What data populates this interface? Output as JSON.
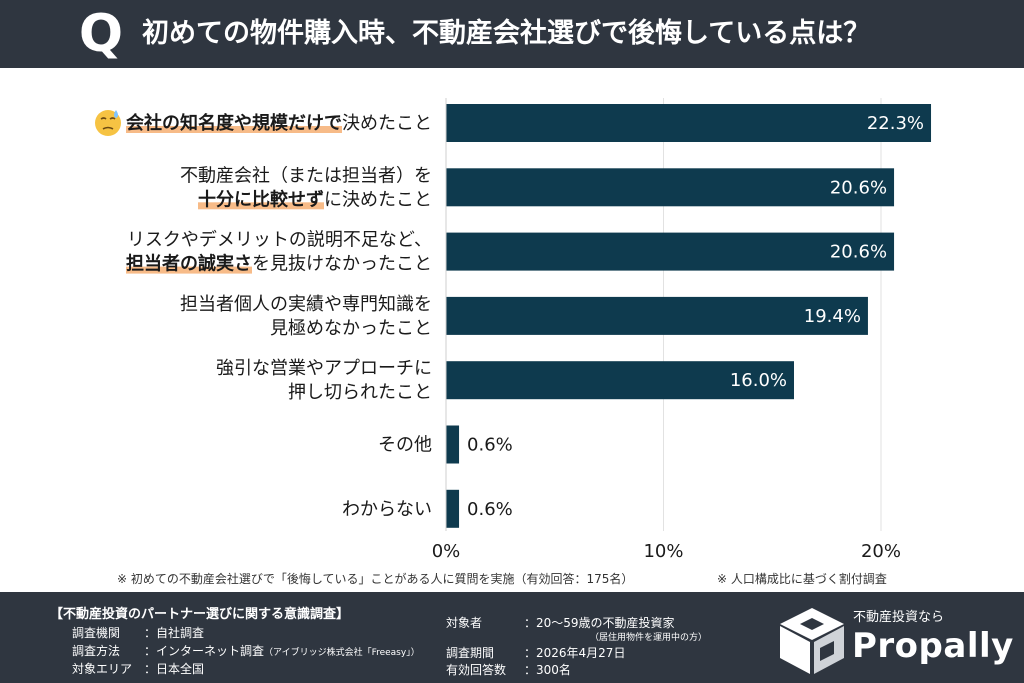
{
  "header": {
    "badge": "Q",
    "title": "初めての物件購入時、不動産会社選びで後悔している点は？"
  },
  "chart_data": {
    "type": "bar",
    "orientation": "horizontal",
    "title": "初めての物件購入時、不動産会社選びで後悔している点は？",
    "unit": "%",
    "categories": [
      {
        "lines": [
          [
            {
              "t": "会社の知名度や規模だけで",
              "hl": true
            },
            {
              "t": "決めたこと",
              "hl": false
            }
          ]
        ],
        "emoji": true
      },
      {
        "lines": [
          [
            {
              "t": "不動産会社（または担当者）を",
              "hl": false
            }
          ],
          [
            {
              "t": "十分に比較せず",
              "hl": true
            },
            {
              "t": "に決めたこと",
              "hl": false
            }
          ]
        ]
      },
      {
        "lines": [
          [
            {
              "t": "リスクやデメリットの説明不足など、",
              "hl": false
            }
          ],
          [
            {
              "t": "担当者の誠実さ",
              "hl": true
            },
            {
              "t": "を見抜けなかったこと",
              "hl": false
            }
          ]
        ]
      },
      {
        "lines": [
          [
            {
              "t": "担当者個人の実績や専門知識を",
              "hl": false
            }
          ],
          [
            {
              "t": "見極めなかったこと",
              "hl": false
            }
          ]
        ]
      },
      {
        "lines": [
          [
            {
              "t": "強引な営業やアプローチに",
              "hl": false
            }
          ],
          [
            {
              "t": "押し切られたこと",
              "hl": false
            }
          ]
        ]
      },
      {
        "lines": [
          [
            {
              "t": "その他",
              "hl": false
            }
          ]
        ]
      },
      {
        "lines": [
          [
            {
              "t": "わからない",
              "hl": false
            }
          ]
        ]
      }
    ],
    "values": [
      22.3,
      20.6,
      20.6,
      19.4,
      16.0,
      0.6,
      0.6
    ],
    "value_labels": [
      "22.3%",
      "20.6%",
      "20.6%",
      "19.4%",
      "16.0%",
      "0.6%",
      "0.6%"
    ],
    "xlim": [
      0,
      20
    ],
    "ticks": [
      0,
      10,
      20
    ],
    "tick_labels": [
      "0%",
      "10%",
      "20%"
    ],
    "grid": true,
    "colors": {
      "bar": "#0e3a4e",
      "highlight": "#f4a460",
      "grid": "#e2e2e2"
    }
  },
  "footnotes": {
    "left": "※ 初めての不動産会社選びで「後悔している」ことがある人に質問を実施（有効回答：175名）",
    "right": "※ 人口構成比に基づく割付調査"
  },
  "survey": {
    "title": "【不動産投資のパートナー選びに関する意識調査】",
    "left_rows": [
      {
        "key": "調査機関",
        "value": "：自社調査",
        "small": ""
      },
      {
        "key": "調査方法",
        "value": "：インターネット調査",
        "small": "（アイブリッジ株式会社「Freeasy」）"
      },
      {
        "key": "対象エリア",
        "value": "：日本全国",
        "small": ""
      }
    ],
    "right_rows": [
      {
        "key": "対象者",
        "value": "：20～59歳の不動産投資家",
        "sub": "（居住用物件を運用中の方）"
      },
      {
        "key": "調査期間",
        "value": "：2026年4月27日",
        "sub": ""
      },
      {
        "key": "有効回答数",
        "value": "：300名",
        "sub": ""
      }
    ]
  },
  "logo": {
    "tagline": "不動産投資なら",
    "name": "Propally"
  }
}
